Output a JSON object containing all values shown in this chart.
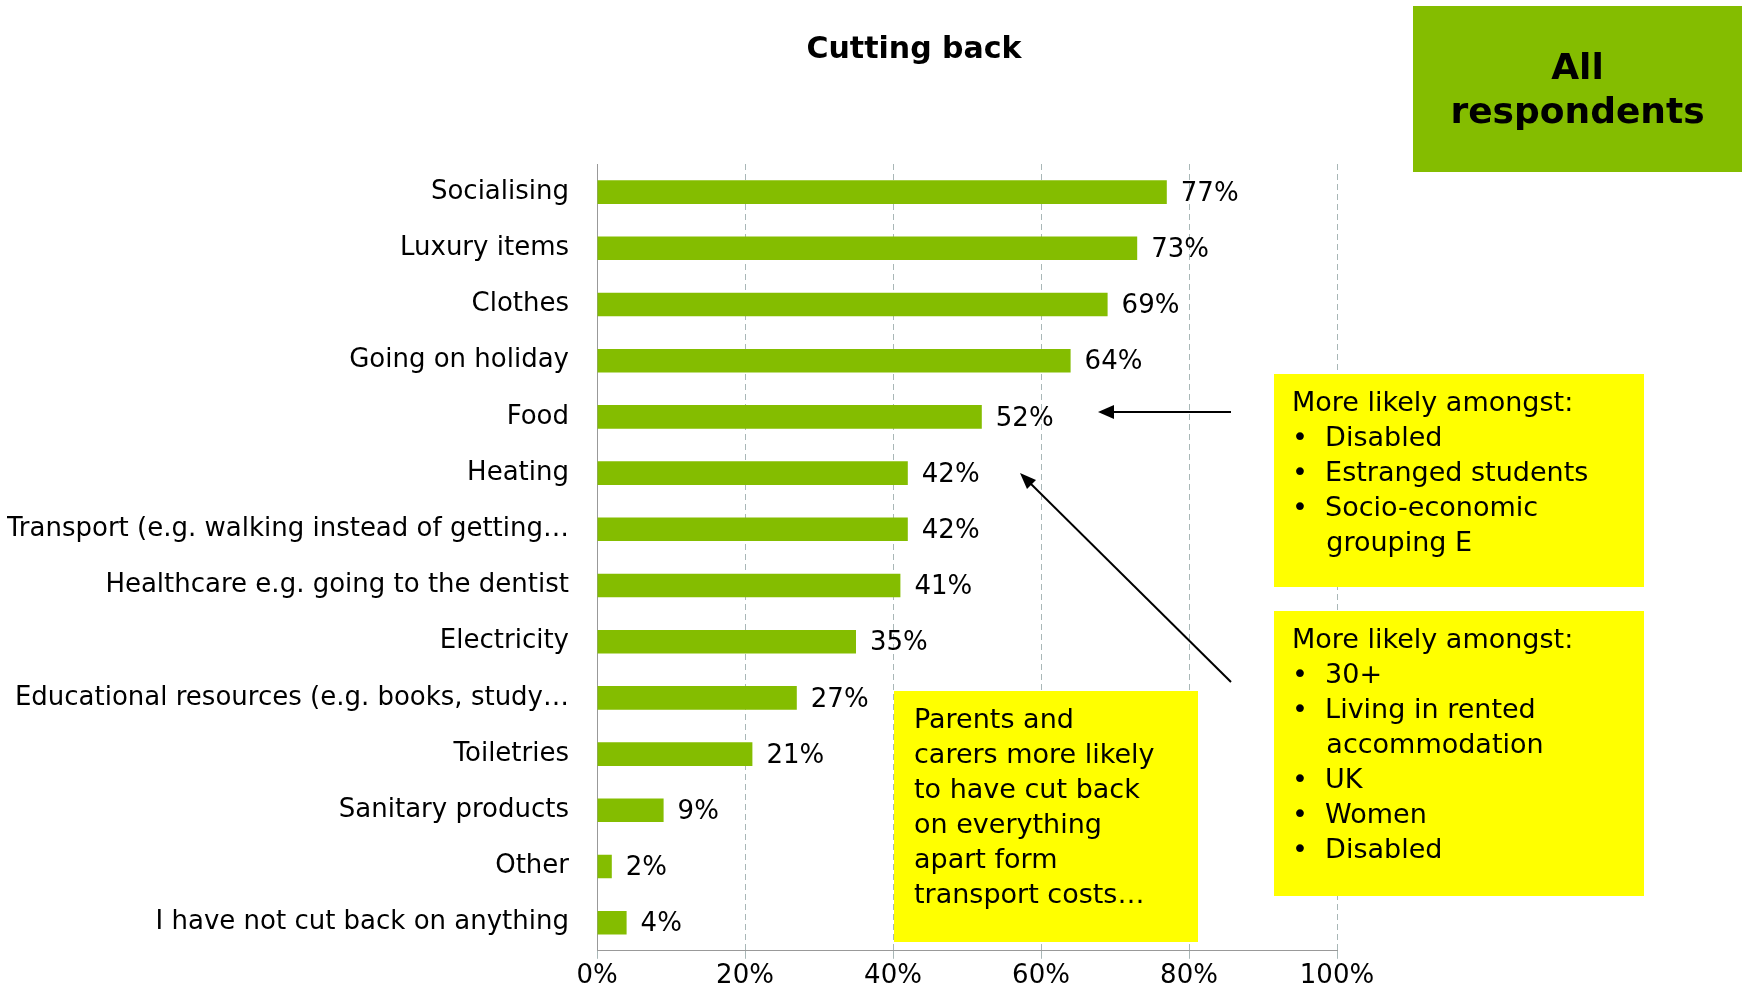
{
  "chart_data": {
    "type": "bar",
    "orientation": "horizontal",
    "title": "Cutting back",
    "categories": [
      "Socialising",
      "Luxury items",
      "Clothes",
      "Going on holiday",
      "Food",
      "Heating",
      "Transport (e.g. walking instead of getting…",
      "Healthcare e.g. going to the dentist",
      "Electricity",
      "Educational resources (e.g. books, study…",
      "Toiletries",
      "Sanitary products",
      "Other",
      "I have not cut back on anything"
    ],
    "values": [
      77,
      73,
      69,
      64,
      52,
      42,
      42,
      41,
      35,
      27,
      21,
      9,
      2,
      4
    ],
    "value_labels": [
      "77%",
      "73%",
      "69%",
      "64%",
      "52%",
      "42%",
      "42%",
      "41%",
      "35%",
      "27%",
      "21%",
      "9%",
      "2%",
      "4%"
    ],
    "color": "#84bd00",
    "xlim": [
      0,
      100
    ],
    "xticks": [
      {
        "value": 0,
        "label": "0%"
      },
      {
        "value": 20,
        "label": "20%"
      },
      {
        "value": 40,
        "label": "40%"
      },
      {
        "value": 60,
        "label": "60%"
      },
      {
        "value": 80,
        "label": "80%"
      },
      {
        "value": 100,
        "label": "100%"
      }
    ],
    "grid": "x",
    "legend": false,
    "annotations": [
      "All respondents",
      "More likely amongst:\n•  Disabled\n•  Estranged students\n•  Socio-economic\n    grouping E",
      "More likely amongst:\n•  30+\n•  Living in rented\n    accommodation\n•  UK\n•  Women\n•  Disabled",
      "Parents and\ncarers more likely\nto have cut back\non everything\napart form\ntransport costs…"
    ]
  }
}
